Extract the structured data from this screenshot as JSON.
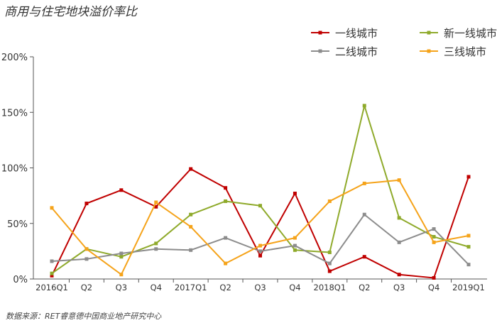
{
  "title": "商用与住宅地块溢价率比",
  "source": "数据来源：RET睿意德中国商业地产研究中心",
  "chart_data": {
    "type": "line",
    "title": "商用与住宅地块溢价率比",
    "categories": [
      "2016Q1",
      "Q2",
      "Q3",
      "Q4",
      "2017Q1",
      "Q2",
      "Q3",
      "Q4",
      "2018Q1",
      "Q2",
      "Q3",
      "Q4",
      "2019Q1"
    ],
    "ylim": [
      0,
      200
    ],
    "yticks": [
      0,
      50,
      100,
      150,
      200
    ],
    "ytick_labels": [
      "0%",
      "50%",
      "100%",
      "150%",
      "200%"
    ],
    "legend_position": "top-right",
    "grid": false,
    "series": [
      {
        "name": "一线城市",
        "color": "#c00000",
        "values": [
          3,
          68,
          80,
          65,
          99,
          82,
          21,
          77,
          7,
          20,
          4,
          1,
          92
        ]
      },
      {
        "name": "新一线城市",
        "color": "#8faa2b",
        "values": [
          5,
          27,
          20,
          32,
          58,
          70,
          66,
          26,
          24,
          156,
          55,
          38,
          29
        ]
      },
      {
        "name": "二线城市",
        "color": "#8c8c8c",
        "values": [
          16,
          18,
          23,
          27,
          26,
          37,
          25,
          30,
          14,
          58,
          33,
          45,
          13
        ]
      },
      {
        "name": "三线城市",
        "color": "#f5a31a",
        "values": [
          64,
          27,
          4,
          69,
          47,
          14,
          30,
          37,
          70,
          86,
          89,
          33,
          39
        ]
      }
    ]
  }
}
